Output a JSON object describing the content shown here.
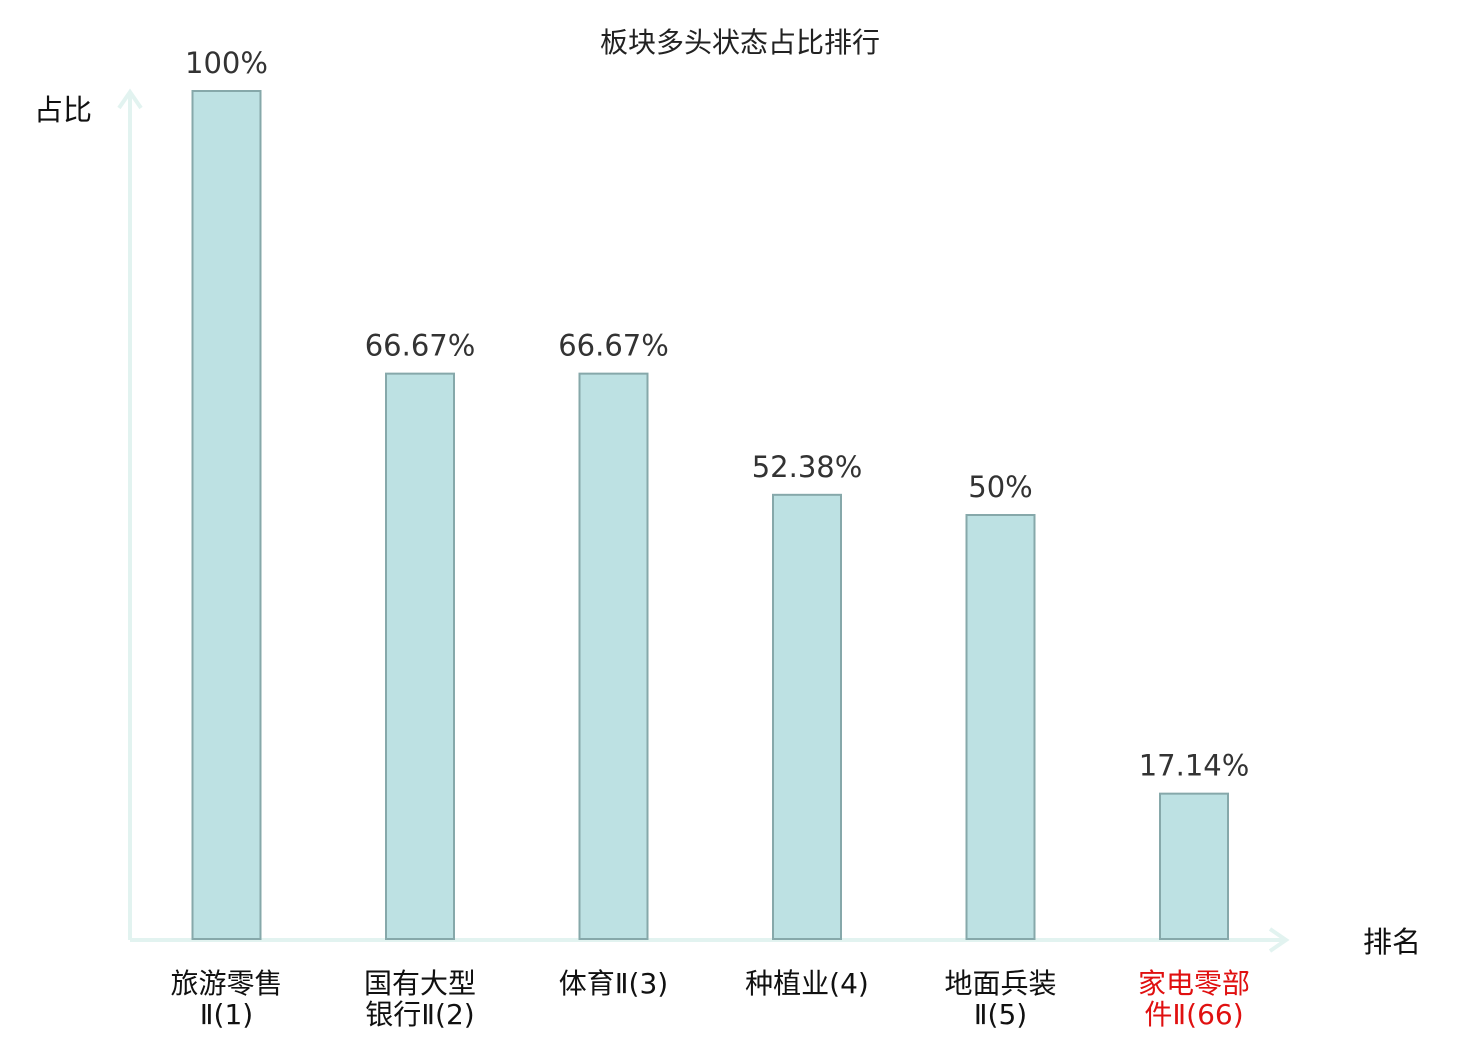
{
  "chart_data": {
    "type": "bar",
    "title": "板块多头状态占比排行",
    "ylabel": "占比",
    "xlabel": "排名",
    "categories": [
      [
        "旅游零售",
        "Ⅱ(1)"
      ],
      [
        "国有大型",
        "银行Ⅱ(2)"
      ],
      [
        "体育Ⅱ(3)"
      ],
      [
        "种植业(4)"
      ],
      [
        "地面兵装",
        "Ⅱ(5)"
      ],
      [
        "家电零部",
        "件Ⅱ(66)"
      ]
    ],
    "values": [
      100,
      66.67,
      66.67,
      52.38,
      50,
      17.14
    ],
    "value_labels": [
      "100%",
      "66.67%",
      "66.67%",
      "52.38%",
      "50%",
      "17.14%"
    ],
    "highlight_index": 5,
    "ylim": [
      0,
      100
    ],
    "grid": false,
    "legend": "none",
    "colors": {
      "bar_fill": "#bde1e3",
      "bar_stroke": "#86a8aa",
      "axis": "#e2f3f0",
      "label_default": "#111111",
      "label_highlight": "#e01010"
    }
  }
}
